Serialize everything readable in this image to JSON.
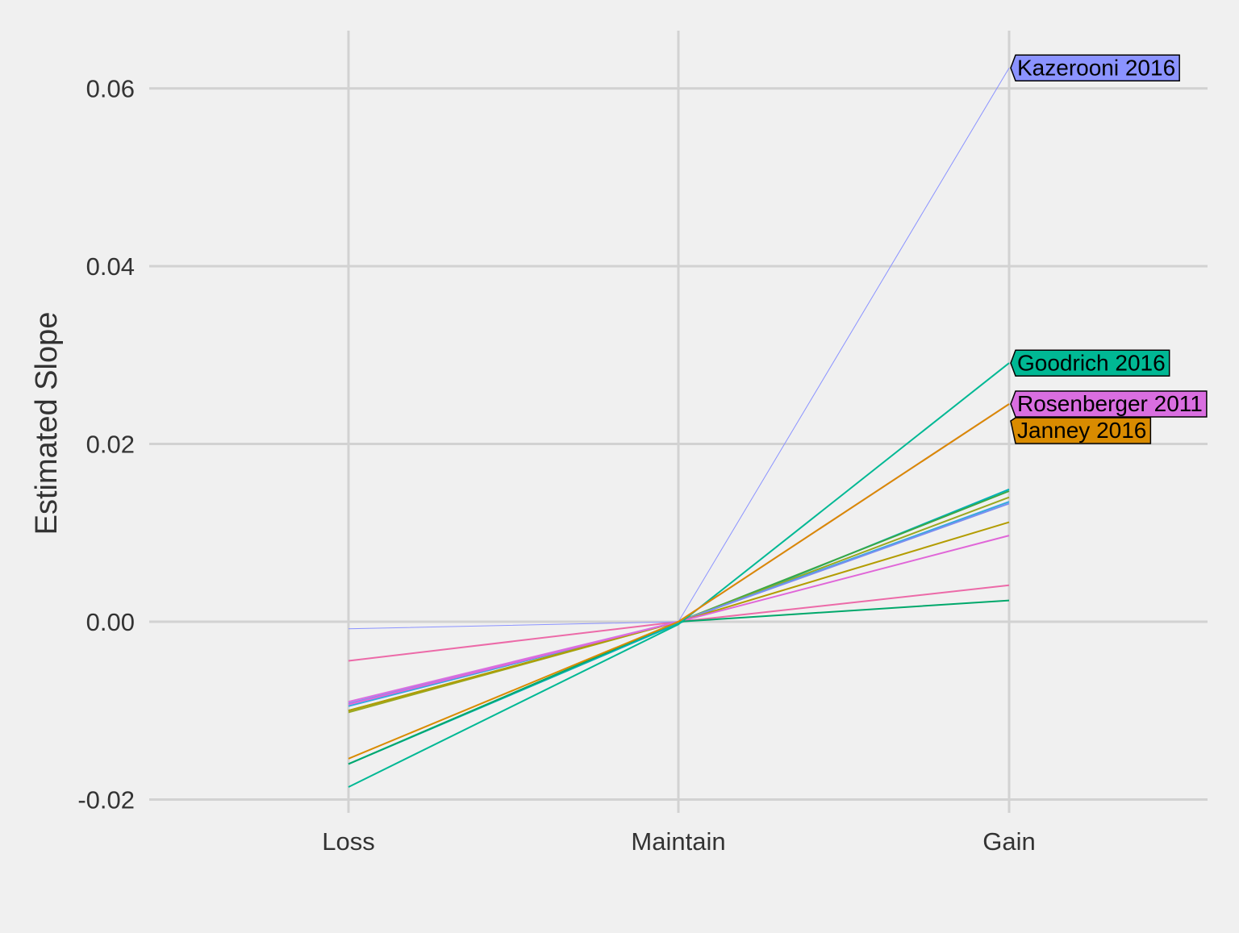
{
  "chart_data": {
    "type": "line",
    "title": "",
    "xlabel": "",
    "ylabel": "Estimated Slope",
    "categories": [
      "Loss",
      "Maintain",
      "Gain"
    ],
    "ylim": [
      -0.0215,
      0.0665
    ],
    "yticks": [
      -0.02,
      0.0,
      0.02,
      0.04,
      0.06
    ],
    "ytick_labels": [
      "-0.02",
      "0.00",
      "0.02",
      "0.04",
      "0.06"
    ],
    "grid": true,
    "legend": "none",
    "series": [
      {
        "name": "Kazerooni 2016",
        "values": [
          -0.0008,
          0.0,
          0.0623
        ],
        "color": "#8b93ff",
        "labeled": true
      },
      {
        "name": "Goodrich 2016",
        "values": [
          -0.0186,
          -0.0003,
          0.0291
        ],
        "color": "#00b894",
        "labeled": true
      },
      {
        "name": "Rosenberger 2011",
        "values": [
          -0.009,
          0.0,
          0.0245
        ],
        "color": "#d96ee0",
        "labeled": true
      },
      {
        "name": "Janney 2016",
        "values": [
          -0.0154,
          0.0,
          0.0245
        ],
        "color": "#d98b00",
        "labeled": true
      },
      {
        "values": [
          -0.016,
          -0.0002,
          0.0149
        ],
        "color": "#00b2b8"
      },
      {
        "values": [
          -0.01,
          0.0,
          0.0147
        ],
        "color": "#3aa845"
      },
      {
        "values": [
          -0.0102,
          0.0,
          0.014
        ],
        "color": "#9aa81f"
      },
      {
        "values": [
          -0.0095,
          0.0,
          0.0135
        ],
        "color": "#35a8e0"
      },
      {
        "values": [
          -0.0092,
          0.0,
          0.0133
        ],
        "color": "#7b8ef0"
      },
      {
        "values": [
          -0.01,
          0.0,
          0.0112
        ],
        "color": "#b39c00"
      },
      {
        "values": [
          -0.0093,
          0.0,
          0.0097
        ],
        "color": "#e066d8"
      },
      {
        "values": [
          -0.0044,
          0.0,
          0.0041
        ],
        "color": "#ec6aa8"
      },
      {
        "values": [
          -0.016,
          0.0,
          0.0024
        ],
        "color": "#00a86b"
      }
    ]
  }
}
